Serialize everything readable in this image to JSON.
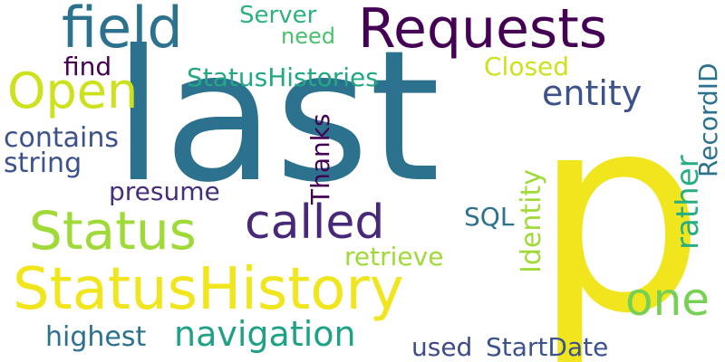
{
  "background": "#ffffff",
  "words": [
    {
      "text": "last",
      "color": "#2c728e"
    },
    {
      "text": "p",
      "color": "#f1e51d"
    },
    {
      "text": "StatusHistory",
      "color": "#f1e51d"
    },
    {
      "text": "Requests",
      "color": "#440154"
    },
    {
      "text": "field",
      "color": "#2c728e"
    },
    {
      "text": "Open",
      "color": "#cde11d"
    },
    {
      "text": "Status",
      "color": "#a0da39"
    },
    {
      "text": "called",
      "color": "#482878"
    },
    {
      "text": "one",
      "color": "#75d054"
    },
    {
      "text": "navigation",
      "color": "#1fa187"
    },
    {
      "text": "entity",
      "color": "#3b528b"
    },
    {
      "text": "StatusHistories",
      "color": "#22a884"
    },
    {
      "text": "Server",
      "color": "#2db27d"
    },
    {
      "text": "need",
      "color": "#4ac16d"
    },
    {
      "text": "Closed",
      "color": "#cde11d"
    },
    {
      "text": "find",
      "color": "#440154"
    },
    {
      "text": "contains",
      "color": "#3b528b"
    },
    {
      "text": "string",
      "color": "#3b528b"
    },
    {
      "text": "presume",
      "color": "#472d7b"
    },
    {
      "text": "Thanks",
      "color": "#440154"
    },
    {
      "text": "SQL",
      "color": "#2c728e"
    },
    {
      "text": "Identity",
      "color": "#a0da39"
    },
    {
      "text": "rather",
      "color": "#28ae80"
    },
    {
      "text": "RecordID",
      "color": "#2c728e"
    },
    {
      "text": "retrieve",
      "color": "#a0da39"
    },
    {
      "text": "highest",
      "color": "#2c728e"
    },
    {
      "text": "used",
      "color": "#3e4a89"
    },
    {
      "text": "StartDate",
      "color": "#3b528b"
    }
  ]
}
